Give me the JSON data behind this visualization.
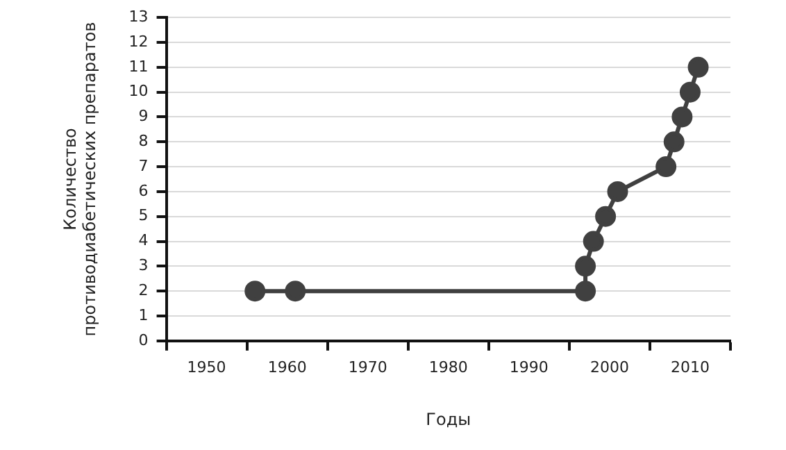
{
  "chart_data": {
    "type": "line",
    "xlabel": "Годы",
    "ylabel": "Количество противодиабетических препаратов",
    "x": [
      1956,
      1961,
      1997,
      1997,
      1998,
      1999.5,
      2001,
      2007,
      2008,
      2009,
      2010,
      2011
    ],
    "series": [
      {
        "color": "#404040",
        "values": [
          2,
          2,
          2,
          3,
          4,
          5,
          6,
          7,
          8,
          9,
          10,
          11
        ]
      }
    ],
    "xlim": [
      1945,
      2015
    ],
    "xticks": [
      {
        "value": 1945,
        "label": null
      },
      1950,
      {
        "value": 1955,
        "label": null
      },
      1960,
      {
        "value": 1965,
        "label": null
      },
      1970,
      {
        "value": 1975,
        "label": null
      },
      1980,
      {
        "value": 1985,
        "label": null
      },
      1990,
      {
        "value": 1995,
        "label": null
      },
      2000,
      {
        "value": 2005,
        "label": null
      },
      2010,
      {
        "value": 2015,
        "label": null
      }
    ],
    "ylim": [
      0,
      13
    ],
    "yticks": [
      0,
      1,
      2,
      3,
      4,
      5,
      6,
      7,
      8,
      9,
      10,
      11,
      12,
      13
    ],
    "grid": "y",
    "legend": false,
    "marker": "circle",
    "line_style": "solid"
  }
}
